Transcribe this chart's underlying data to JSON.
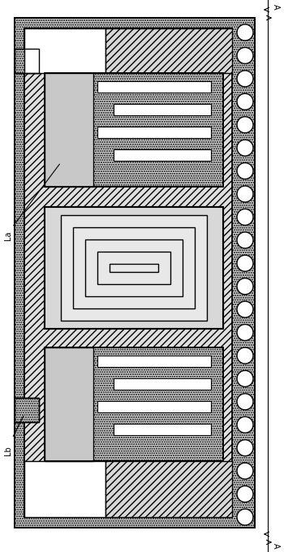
{
  "fig_width": 3.5,
  "fig_height": 6.8,
  "dpi": 100,
  "bg_color": "#ffffff",
  "label_La": "La",
  "label_Lb": "Lb",
  "label_A": "A"
}
